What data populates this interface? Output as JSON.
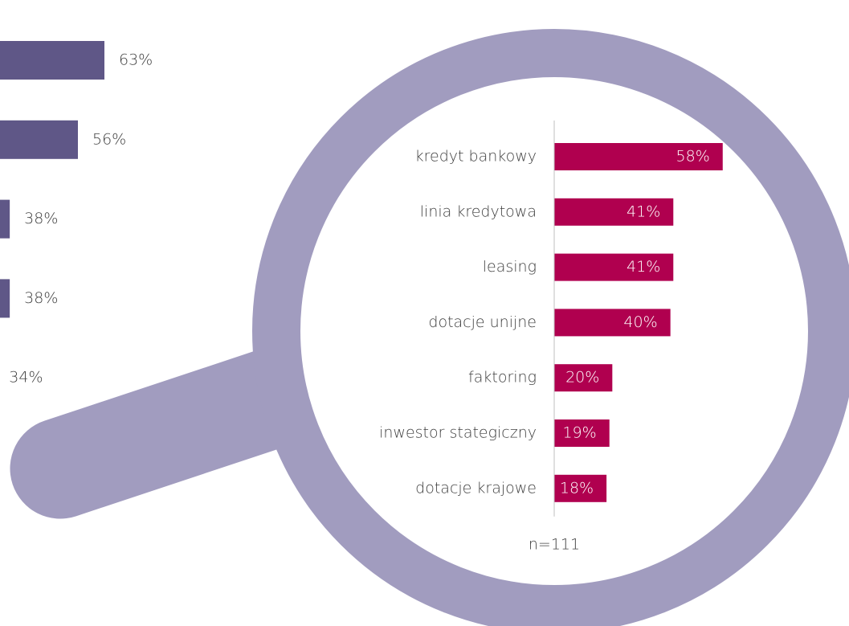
{
  "chart_data": [
    {
      "type": "bar",
      "orientation": "horizontal",
      "values": [
        63,
        56,
        38,
        38,
        34
      ],
      "value_labels": [
        "63%",
        "56%",
        "38%",
        "38%",
        "34%"
      ],
      "color": "#5f5787",
      "xlim": [
        0,
        70
      ]
    },
    {
      "type": "bar",
      "orientation": "horizontal",
      "categories": [
        "kredyt bankowy",
        "linia kredytowa",
        "leasing",
        "dotacje unijne",
        "faktoring",
        "inwestor stategiczny",
        "dotacje krajowe"
      ],
      "values": [
        58,
        41,
        41,
        40,
        20,
        19,
        18
      ],
      "value_labels": [
        "58%",
        "41%",
        "41%",
        "40%",
        "20%",
        "19%",
        "18%"
      ],
      "color": "#b0004f",
      "xlim": [
        0,
        60
      ],
      "note": "n=111"
    }
  ]
}
